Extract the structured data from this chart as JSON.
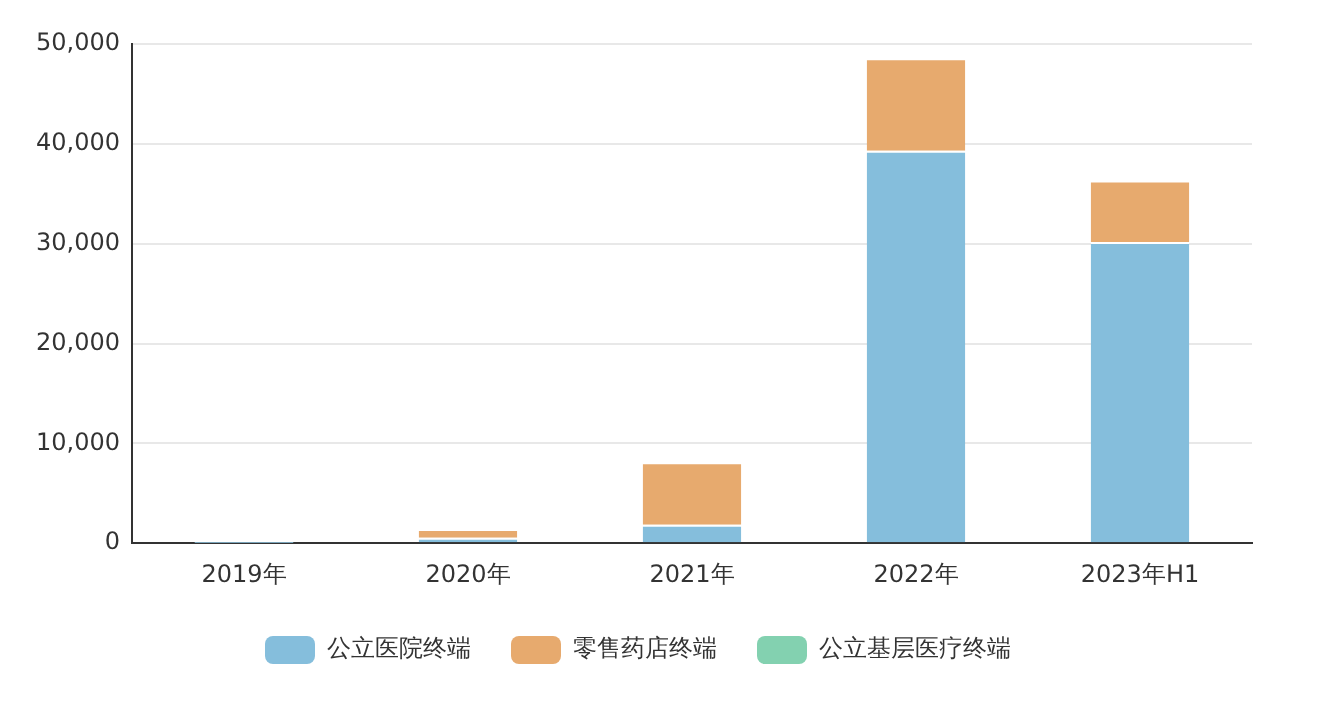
{
  "chart_data": {
    "type": "bar",
    "stacked": true,
    "categories": [
      "2019年",
      "2020年",
      "2021年",
      "2022年",
      "2023年H1"
    ],
    "series": [
      {
        "name": "公立医院终端",
        "color": "#85bedc",
        "values": [
          20,
          540,
          1850,
          39300,
          30160
        ]
      },
      {
        "name": "零售药店终端",
        "color": "#e7aa6e",
        "values": [
          60,
          880,
          6260,
          9280,
          6160
        ]
      },
      {
        "name": "公立基层医疗终端",
        "color": "#83d1b0",
        "values": [
          0,
          0,
          0,
          0,
          0
        ]
      }
    ],
    "ylim": [
      0,
      50000
    ],
    "yticks": [
      {
        "value": 0,
        "label": "0"
      },
      {
        "value": 10000,
        "label": "10,000"
      },
      {
        "value": 20000,
        "label": "20,000"
      },
      {
        "value": 30000,
        "label": "30,000"
      },
      {
        "value": 40000,
        "label": "40,000"
      },
      {
        "value": 50000,
        "label": "50,000"
      }
    ],
    "grid": "y",
    "legend": "bottom"
  }
}
